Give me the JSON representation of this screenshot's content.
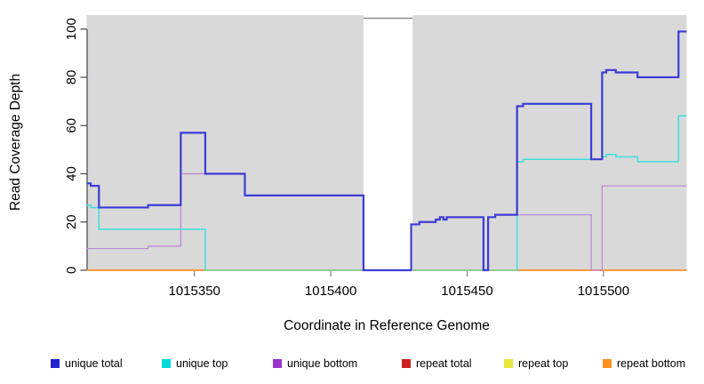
{
  "chart_data": {
    "type": "line",
    "subtype": "step-coverage",
    "title": "",
    "xlabel": "Coordinate in Reference Genome",
    "ylabel": "Read Coverage Depth",
    "xlim": [
      1015310.5,
      1015530.5
    ],
    "ylim": [
      0,
      100
    ],
    "yticks": [
      0,
      20,
      40,
      60,
      80,
      100
    ],
    "xticks": [
      {
        "value": 1015350,
        "label": "1015350"
      },
      {
        "value": 1015400,
        "label": "1015400"
      },
      {
        "value": 1015450,
        "label": "1015450"
      },
      {
        "value": 1015500,
        "label": "1015500"
      }
    ],
    "panel_color": "#d9d9d9",
    "axis_color": "#41414b",
    "x_tick_color": "#8a8a8a",
    "gap_region": {
      "x_start": 1015412,
      "x_end": 1015430,
      "fill": "#ffffff",
      "border_color": "#8a8a8a"
    },
    "baseline_overlap_color": "#93cb93",
    "baseline_overlap_segments": [
      [
        1015354,
        1015412
      ],
      [
        1015429.5,
        1015468.3
      ]
    ],
    "series": [
      {
        "name": "repeat total",
        "color": "#dd2020",
        "width": 1,
        "points": [
          [
            1015310.5,
            0
          ]
        ]
      },
      {
        "name": "repeat top",
        "color": "#e6e600",
        "width": 1,
        "points": [
          [
            1015310.5,
            0
          ]
        ]
      },
      {
        "name": "repeat bottom",
        "color": "#ff9121",
        "width": 1.8,
        "points": [
          [
            1015310.5,
            0
          ]
        ]
      },
      {
        "name": "unique bottom",
        "color": "#bd84d6",
        "width": 1.2,
        "points": [
          [
            1015310.5,
            9
          ],
          [
            1015333,
            10
          ],
          [
            1015345,
            40
          ],
          [
            1015368.5,
            31
          ],
          [
            1015412,
            0
          ],
          [
            1015429.5,
            19
          ],
          [
            1015432.5,
            20
          ],
          [
            1015438.5,
            21
          ],
          [
            1015440,
            22
          ],
          [
            1015441.3,
            21
          ],
          [
            1015442.5,
            22
          ],
          [
            1015456,
            0
          ],
          [
            1015457.7,
            22
          ],
          [
            1015460.3,
            23
          ],
          [
            1015495.5,
            0
          ],
          [
            1015499.5,
            35
          ]
        ]
      },
      {
        "name": "unique top",
        "color": "#3edddd",
        "width": 1.5,
        "points": [
          [
            1015310.5,
            27
          ],
          [
            1015312,
            26
          ],
          [
            1015315,
            17
          ],
          [
            1015354,
            0
          ],
          [
            1015468.3,
            45
          ],
          [
            1015470.5,
            46
          ],
          [
            1015499.5,
            47
          ],
          [
            1015501,
            48
          ],
          [
            1015504.5,
            47
          ],
          [
            1015512.5,
            45
          ],
          [
            1015527.5,
            64
          ]
        ]
      },
      {
        "name": "unique total",
        "color": "#3b3bd8",
        "width": 2.2,
        "points": [
          [
            1015310.5,
            36
          ],
          [
            1015312,
            35
          ],
          [
            1015315,
            26
          ],
          [
            1015333,
            27
          ],
          [
            1015345,
            57
          ],
          [
            1015354,
            40
          ],
          [
            1015368.5,
            31
          ],
          [
            1015412,
            0
          ],
          [
            1015429.5,
            19
          ],
          [
            1015432.5,
            20
          ],
          [
            1015438.5,
            21
          ],
          [
            1015440,
            22
          ],
          [
            1015441.3,
            21
          ],
          [
            1015442.5,
            22
          ],
          [
            1015456,
            0
          ],
          [
            1015457.7,
            22
          ],
          [
            1015460.3,
            23
          ],
          [
            1015468.3,
            68
          ],
          [
            1015470.5,
            69
          ],
          [
            1015495.5,
            46
          ],
          [
            1015499.5,
            82
          ],
          [
            1015501,
            83
          ],
          [
            1015504.5,
            82
          ],
          [
            1015512.5,
            80
          ],
          [
            1015527.5,
            99
          ]
        ]
      }
    ],
    "legend": {
      "position": "bottom",
      "items": [
        {
          "label": "unique total",
          "color": "#2222cc"
        },
        {
          "label": "unique top",
          "color": "#00dada"
        },
        {
          "label": "unique bottom",
          "color": "#9933cc"
        },
        {
          "label": "repeat total",
          "color": "#cc2020"
        },
        {
          "label": "repeat top",
          "color": "#e8e83a"
        },
        {
          "label": "repeat bottom",
          "color": "#ff9121"
        }
      ]
    }
  }
}
